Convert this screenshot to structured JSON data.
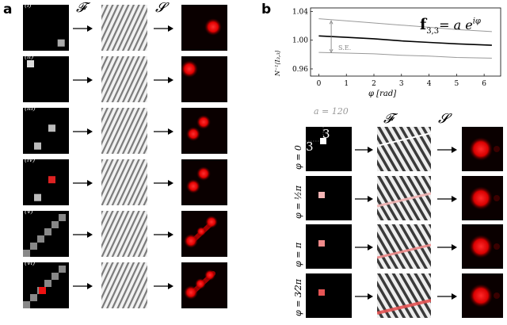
{
  "panel_a": {
    "letter": "a",
    "col_headers": {
      "fourier": "𝓕",
      "sensor": "𝓢"
    },
    "rows": [
      {
        "label": "(i)"
      },
      {
        "label": "(ii)"
      },
      {
        "label": "(iii)"
      },
      {
        "label": "(iv)"
      },
      {
        "label": "(v)"
      },
      {
        "label": "(vi)"
      }
    ]
  },
  "panel_b": {
    "letter": "b",
    "formula_main": "f",
    "formula_sub": "3,3",
    "formula_rhs": "= a e",
    "formula_exp": "iφ",
    "ylabel": "N⁻¹⟨I₃,₃⟩",
    "xlabel": "φ [rad]",
    "se_label": "S.E.",
    "a_label": "a = 120",
    "col_headers": {
      "fourier": "𝓕",
      "sensor": "𝓢"
    },
    "coord_labels": {
      "x": "3",
      "y": "3"
    },
    "rows": [
      {
        "phi_label": "φ = 0"
      },
      {
        "phi_label": "φ = ½π"
      },
      {
        "phi_label": "φ = π"
      },
      {
        "phi_label": "φ = 3⁄2π"
      }
    ]
  },
  "chart_data": {
    "type": "line",
    "x": [
      0,
      1,
      2,
      3,
      4,
      5,
      6.28
    ],
    "series": [
      {
        "values": [
          1.006,
          1.004,
          1.002,
          0.999,
          0.997,
          0.995,
          0.993
        ]
      },
      {
        "values": [
          1.03,
          1.027,
          1.024,
          1.021,
          1.018,
          1.015,
          1.012
        ]
      },
      {
        "values": [
          0.983,
          0.982,
          0.981,
          0.979,
          0.978,
          0.976,
          0.975
        ]
      }
    ],
    "xticks": [
      "0",
      "1",
      "2",
      "3",
      "4",
      "5",
      "6"
    ],
    "yticks": [
      "0.96",
      "1.00",
      "1.04"
    ],
    "xlim": [
      -0.3,
      6.6
    ],
    "ylim": [
      0.95,
      1.045
    ],
    "xlabel": "φ [rad]",
    "ylabel": "N⁻¹⟨I₃,₃⟩"
  }
}
